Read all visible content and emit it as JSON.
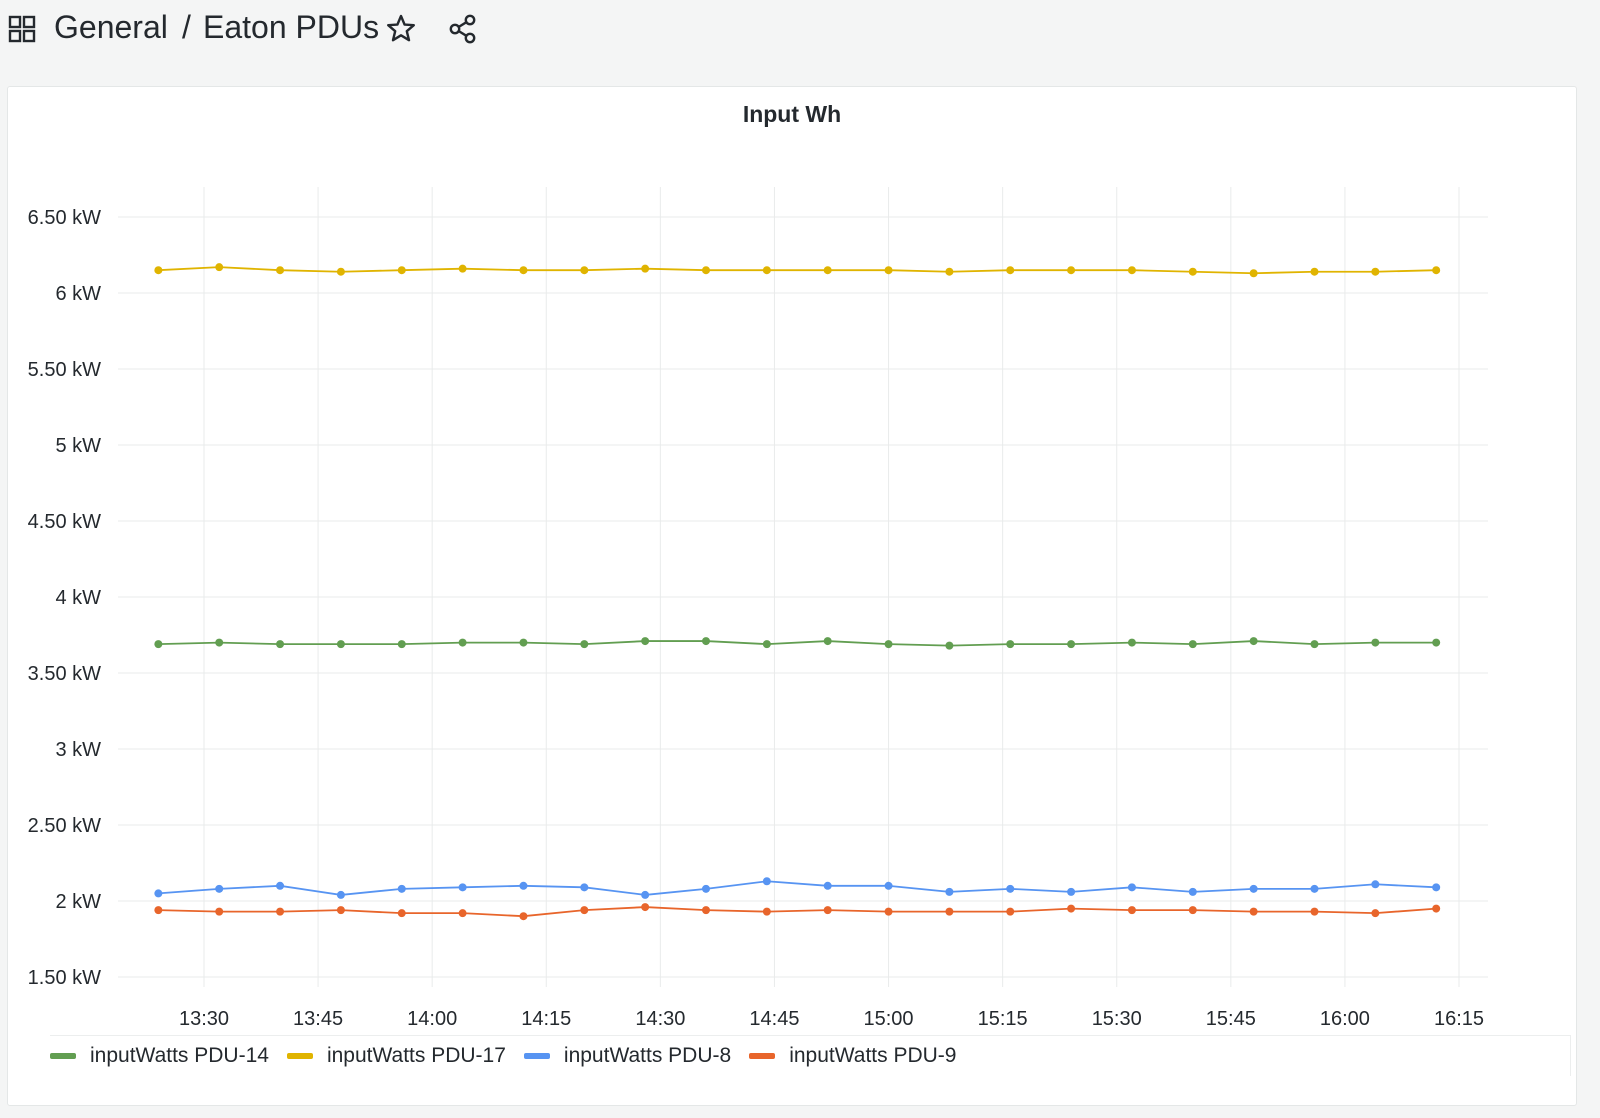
{
  "header": {
    "grid_icon": "dashboard-grid-icon",
    "crumb_folder": "General",
    "crumb_separator": "/",
    "crumb_dashboard": "Eaton PDUs",
    "star_icon": "star-icon",
    "share_icon": "share-icon"
  },
  "panel": {
    "title": "Input Wh"
  },
  "chart_data": {
    "type": "line",
    "title": "Input Wh",
    "xlabel": "",
    "ylabel": "",
    "x_ticks": [
      "13:30",
      "13:45",
      "14:00",
      "14:15",
      "14:30",
      "14:45",
      "15:00",
      "15:15",
      "15:30",
      "15:45",
      "16:00",
      "16:15"
    ],
    "y_ticks": [
      "1.50 kW",
      "2 kW",
      "2.50 kW",
      "3 kW",
      "3.50 kW",
      "4 kW",
      "4.50 kW",
      "5 kW",
      "5.50 kW",
      "6 kW",
      "6.50 kW"
    ],
    "ylim_kw": [
      1.5,
      6.5
    ],
    "xlim": [
      "13:24",
      "16:12"
    ],
    "grid": true,
    "legend_position": "bottom-left",
    "x": [
      "13:24",
      "13:32",
      "13:40",
      "13:48",
      "13:56",
      "14:04",
      "14:12",
      "14:20",
      "14:28",
      "14:36",
      "14:44",
      "14:52",
      "15:00",
      "15:08",
      "15:16",
      "15:24",
      "15:32",
      "15:40",
      "15:48",
      "15:56",
      "16:04",
      "16:12"
    ],
    "series": [
      {
        "name": "inputWatts PDU-14",
        "color": "#629e51",
        "values": [
          3.69,
          3.7,
          3.69,
          3.69,
          3.69,
          3.7,
          3.7,
          3.69,
          3.71,
          3.71,
          3.69,
          3.71,
          3.69,
          3.68,
          3.69,
          3.69,
          3.7,
          3.69,
          3.71,
          3.69,
          3.7,
          3.7
        ]
      },
      {
        "name": "inputWatts PDU-17",
        "color": "#e0b400",
        "values": [
          6.15,
          6.17,
          6.15,
          6.14,
          6.15,
          6.16,
          6.15,
          6.15,
          6.16,
          6.15,
          6.15,
          6.15,
          6.15,
          6.14,
          6.15,
          6.15,
          6.15,
          6.14,
          6.13,
          6.14,
          6.14,
          6.15
        ]
      },
      {
        "name": "inputWatts PDU-8",
        "color": "#5794f2",
        "values": [
          2.05,
          2.08,
          2.1,
          2.04,
          2.08,
          2.09,
          2.1,
          2.09,
          2.04,
          2.08,
          2.13,
          2.1,
          2.1,
          2.06,
          2.08,
          2.06,
          2.09,
          2.06,
          2.08,
          2.08,
          2.11,
          2.09
        ]
      },
      {
        "name": "inputWatts PDU-9",
        "color": "#e8652b",
        "values": [
          1.94,
          1.93,
          1.93,
          1.94,
          1.92,
          1.92,
          1.9,
          1.94,
          1.96,
          1.94,
          1.93,
          1.94,
          1.93,
          1.93,
          1.93,
          1.95,
          1.94,
          1.94,
          1.93,
          1.93,
          1.92,
          1.95
        ]
      }
    ]
  }
}
